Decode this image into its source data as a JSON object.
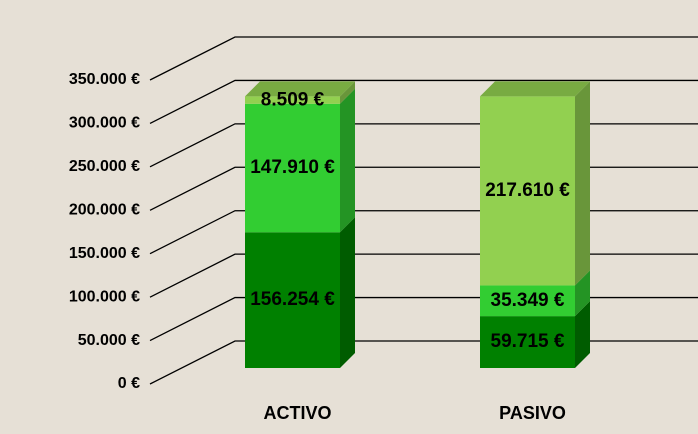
{
  "chart_data": {
    "type": "bar3d_stacked",
    "categories": [
      "ACTIVO",
      "PASIVO"
    ],
    "series": [
      {
        "color": "#008000",
        "values": [
          156254,
          59715
        ],
        "value_labels": [
          "156.254 €",
          "59.715 €"
        ]
      },
      {
        "color": "#32cd32",
        "values": [
          147910,
          35349
        ],
        "value_labels": [
          "147.910 €",
          "35.349 €"
        ]
      },
      {
        "color": "#92d050",
        "values": [
          8509,
          217610
        ],
        "value_labels": [
          "8.509 €",
          "217.610 €"
        ]
      }
    ],
    "ylim": [
      0,
      350000
    ],
    "yticks": [
      {
        "value": 0,
        "label": "0 €"
      },
      {
        "value": 50000,
        "label": "50.000 €"
      },
      {
        "value": 100000,
        "label": "100.000 €"
      },
      {
        "value": 150000,
        "label": "150.000 €"
      },
      {
        "value": 200000,
        "label": "200.000 €"
      },
      {
        "value": 250000,
        "label": "250.000 €"
      },
      {
        "value": 300000,
        "label": "300.000 €"
      },
      {
        "value": 350000,
        "label": "350.000 €"
      }
    ],
    "grid": true
  }
}
